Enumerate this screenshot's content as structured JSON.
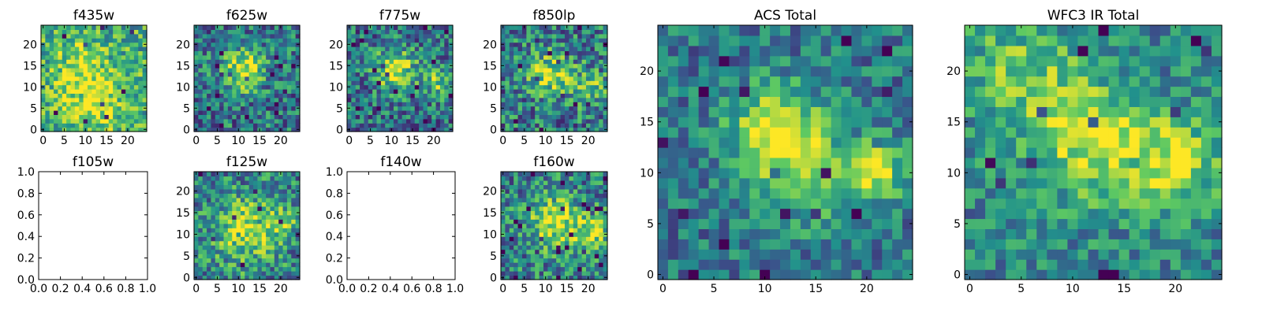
{
  "colormap": {
    "name": "viridis",
    "stops": [
      "#440154",
      "#3b528b",
      "#21918c",
      "#5ec962",
      "#fde725"
    ]
  },
  "chart_data": [
    {
      "type": "heatmap",
      "title": "f435w",
      "rows": 25,
      "cols": 25,
      "xticks": [
        "0",
        "5",
        "10",
        "15",
        "20"
      ],
      "yticks": [
        "0",
        "5",
        "10",
        "15",
        "20"
      ],
      "xlim": [
        0,
        24
      ],
      "ylim": [
        0,
        24
      ],
      "has_data": true,
      "blobs": [
        {
          "x": 12,
          "y": 7,
          "sigma": 5,
          "amp": 0.35
        },
        {
          "x": 8,
          "y": 16,
          "sigma": 4,
          "amp": 0.2
        }
      ],
      "base": 0.62,
      "noise": 0.28,
      "seed": 11
    },
    {
      "type": "heatmap",
      "title": "f625w",
      "rows": 25,
      "cols": 25,
      "xticks": [
        "0",
        "5",
        "10",
        "15",
        "20"
      ],
      "yticks": [
        "0",
        "5",
        "10",
        "15",
        "20"
      ],
      "xlim": [
        0,
        24
      ],
      "ylim": [
        0,
        24
      ],
      "has_data": true,
      "blobs": [
        {
          "x": 11,
          "y": 14,
          "sigma": 3.5,
          "amp": 0.55
        }
      ],
      "base": 0.4,
      "noise": 0.3,
      "seed": 23
    },
    {
      "type": "heatmap",
      "title": "f775w",
      "rows": 25,
      "cols": 25,
      "xticks": [
        "0",
        "5",
        "10",
        "15",
        "20"
      ],
      "yticks": [
        "0",
        "5",
        "10",
        "15",
        "20"
      ],
      "xlim": [
        0,
        24
      ],
      "ylim": [
        0,
        24
      ],
      "has_data": true,
      "blobs": [
        {
          "x": 11,
          "y": 14,
          "sigma": 3.5,
          "amp": 0.55
        },
        {
          "x": 21,
          "y": 11,
          "sigma": 2.5,
          "amp": 0.35
        }
      ],
      "base": 0.38,
      "noise": 0.3,
      "seed": 37
    },
    {
      "type": "heatmap",
      "title": "f850lp",
      "rows": 25,
      "cols": 25,
      "xticks": [
        "0",
        "5",
        "10",
        "15",
        "20"
      ],
      "yticks": [
        "0",
        "5",
        "10",
        "15",
        "20"
      ],
      "xlim": [
        0,
        24
      ],
      "ylim": [
        0,
        24
      ],
      "has_data": true,
      "blobs": [
        {
          "x": 11,
          "y": 13,
          "sigma": 3.5,
          "amp": 0.45
        },
        {
          "x": 20,
          "y": 10,
          "sigma": 3,
          "amp": 0.3
        }
      ],
      "base": 0.42,
      "noise": 0.32,
      "seed": 41
    },
    {
      "type": "heatmap",
      "title": "f105w",
      "rows": 0,
      "cols": 0,
      "xticks": [
        "0.0",
        "0.2",
        "0.4",
        "0.6",
        "0.8",
        "1.0"
      ],
      "yticks": [
        "0.0",
        "0.2",
        "0.4",
        "0.6",
        "0.8",
        "1.0"
      ],
      "xlim": [
        0,
        1
      ],
      "ylim": [
        0,
        1
      ],
      "has_data": false
    },
    {
      "type": "heatmap",
      "title": "f125w",
      "rows": 25,
      "cols": 25,
      "xticks": [
        "0",
        "5",
        "10",
        "15",
        "20"
      ],
      "yticks": [
        "0",
        "5",
        "10",
        "15",
        "20"
      ],
      "xlim": [
        0,
        24
      ],
      "ylim": [
        0,
        24
      ],
      "has_data": true,
      "blobs": [
        {
          "x": 12,
          "y": 11,
          "sigma": 5,
          "amp": 0.45
        },
        {
          "x": 20,
          "y": 13,
          "sigma": 3,
          "amp": 0.25
        }
      ],
      "base": 0.45,
      "noise": 0.3,
      "seed": 53
    },
    {
      "type": "heatmap",
      "title": "f140w",
      "rows": 0,
      "cols": 0,
      "xticks": [
        "0.0",
        "0.2",
        "0.4",
        "0.6",
        "0.8",
        "1.0"
      ],
      "yticks": [
        "0.0",
        "0.2",
        "0.4",
        "0.6",
        "0.8",
        "1.0"
      ],
      "xlim": [
        0,
        1
      ],
      "ylim": [
        0,
        1
      ],
      "has_data": false
    },
    {
      "type": "heatmap",
      "title": "f160w",
      "rows": 25,
      "cols": 25,
      "xticks": [
        "0",
        "5",
        "10",
        "15",
        "20"
      ],
      "yticks": [
        "0",
        "5",
        "10",
        "15",
        "20"
      ],
      "xlim": [
        0,
        24
      ],
      "ylim": [
        0,
        24
      ],
      "has_data": true,
      "blobs": [
        {
          "x": 12,
          "y": 13,
          "sigma": 4,
          "amp": 0.5
        },
        {
          "x": 21,
          "y": 10,
          "sigma": 3,
          "amp": 0.4
        }
      ],
      "base": 0.45,
      "noise": 0.3,
      "seed": 67
    },
    {
      "type": "heatmap",
      "title": "ACS Total",
      "rows": 25,
      "cols": 25,
      "xticks": [
        "0",
        "5",
        "10",
        "15",
        "20"
      ],
      "yticks": [
        "0",
        "5",
        "10",
        "15",
        "20"
      ],
      "xlim": [
        0,
        24
      ],
      "ylim": [
        0,
        24
      ],
      "has_data": true,
      "blobs": [
        {
          "x": 11,
          "y": 14,
          "sigma": 3,
          "amp": 0.6
        },
        {
          "x": 15,
          "y": 10,
          "sigma": 4,
          "amp": 0.25
        },
        {
          "x": 21,
          "y": 10,
          "sigma": 1.8,
          "amp": 0.5
        }
      ],
      "base": 0.4,
      "noise": 0.22,
      "seed": 79
    },
    {
      "type": "heatmap",
      "title": "WFC3 IR Total",
      "rows": 25,
      "cols": 25,
      "xticks": [
        "0",
        "5",
        "10",
        "15",
        "20"
      ],
      "yticks": [
        "0",
        "5",
        "10",
        "15",
        "20"
      ],
      "xlim": [
        0,
        24
      ],
      "ylim": [
        0,
        24
      ],
      "has_data": true,
      "blobs": [
        {
          "x": 12,
          "y": 13,
          "sigma": 4,
          "amp": 0.45
        },
        {
          "x": 20,
          "y": 11,
          "sigma": 3,
          "amp": 0.45
        },
        {
          "x": 5,
          "y": 20,
          "sigma": 4,
          "amp": 0.3
        }
      ],
      "base": 0.45,
      "noise": 0.22,
      "seed": 97
    }
  ]
}
